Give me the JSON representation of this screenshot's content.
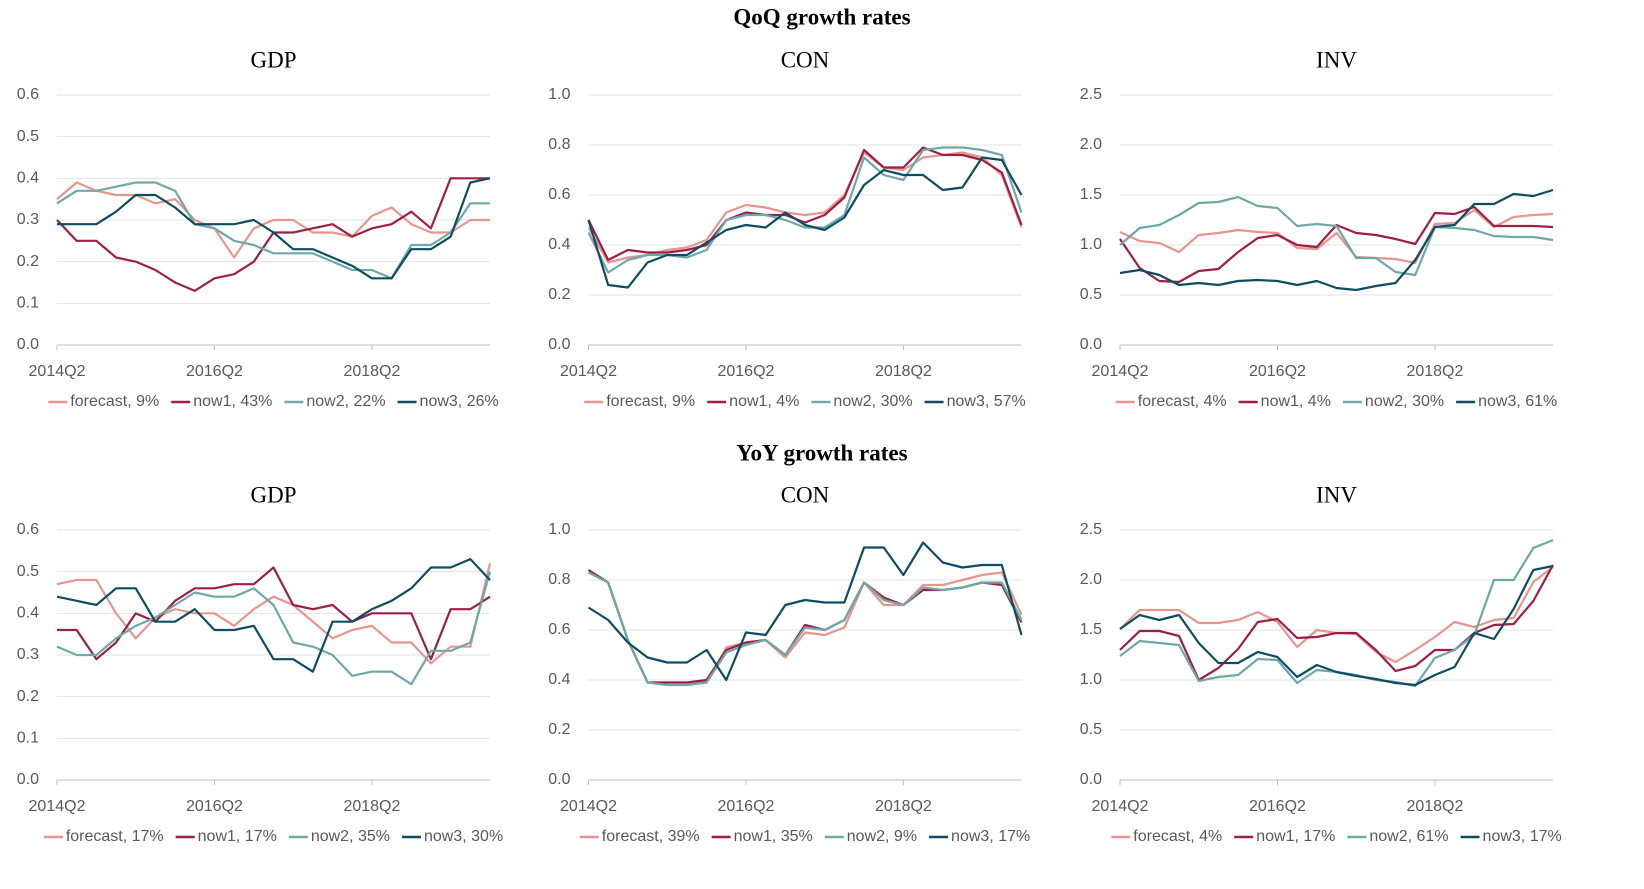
{
  "section_titles": [
    "QoQ growth rates",
    "YoY growth rates"
  ],
  "chart_data": [
    {
      "type": "line",
      "title": "GDP",
      "categories": [
        "2014Q2",
        null,
        null,
        null,
        null,
        null,
        null,
        null,
        "2016Q2",
        null,
        null,
        null,
        null,
        null,
        null,
        null,
        "2018Q2",
        null,
        null,
        null,
        null,
        null,
        null
      ],
      "ylim": [
        0,
        0.6
      ],
      "yticks": [
        {
          "value": 0,
          "label": "0.0"
        },
        0.1,
        0.2,
        0.3,
        0.4,
        0.5,
        0.6
      ],
      "grid": true,
      "series": [
        {
          "name": "forecast, 9%",
          "color": "#e8958d",
          "values": [
            0.35,
            0.39,
            0.37,
            0.36,
            0.36,
            0.34,
            0.35,
            0.3,
            0.28,
            0.21,
            0.28,
            0.3,
            0.3,
            0.27,
            0.27,
            0.26,
            0.31,
            0.33,
            0.29,
            0.27,
            0.27,
            0.3,
            0.3
          ]
        },
        {
          "name": "now1, 43%",
          "color": "#9e1f45",
          "values": [
            0.3,
            0.25,
            0.25,
            0.21,
            0.2,
            0.18,
            0.15,
            0.13,
            0.16,
            0.17,
            0.2,
            0.27,
            0.27,
            0.28,
            0.29,
            0.26,
            0.28,
            0.29,
            0.32,
            0.28,
            0.4,
            0.4,
            0.4
          ]
        },
        {
          "name": "now2, 22%",
          "color": "#6ea8a8",
          "values": [
            0.34,
            0.37,
            0.37,
            0.38,
            0.39,
            0.39,
            0.37,
            0.29,
            0.28,
            0.25,
            0.24,
            0.22,
            0.22,
            0.22,
            0.2,
            0.18,
            0.18,
            0.16,
            0.24,
            0.24,
            0.27,
            0.34,
            0.34
          ]
        },
        {
          "name": "now3, 26%",
          "color": "#0d4d63",
          "values": [
            0.29,
            0.29,
            0.29,
            0.32,
            0.36,
            0.36,
            0.33,
            0.29,
            0.29,
            0.29,
            0.3,
            0.27,
            0.23,
            0.23,
            0.21,
            0.19,
            0.16,
            0.16,
            0.23,
            0.23,
            0.26,
            0.39,
            0.4
          ]
        }
      ]
    },
    {
      "type": "line",
      "title": "CON",
      "categories": [
        "2014Q2",
        null,
        null,
        null,
        null,
        null,
        null,
        null,
        "2016Q2",
        null,
        null,
        null,
        null,
        null,
        null,
        null,
        "2018Q2",
        null,
        null,
        null,
        null,
        null,
        null
      ],
      "ylim": [
        0,
        1
      ],
      "yticks": [
        {
          "value": 0,
          "label": "0.0"
        },
        0.2,
        0.4,
        0.6,
        0.8,
        {
          "value": 1,
          "label": "1.0"
        }
      ],
      "grid": true,
      "series": [
        {
          "name": "forecast, 9%",
          "color": "#e8958d",
          "values": [
            0.47,
            0.33,
            0.35,
            0.36,
            0.38,
            0.39,
            0.42,
            0.53,
            0.56,
            0.55,
            0.53,
            0.52,
            0.53,
            0.6,
            0.77,
            0.71,
            0.7,
            0.75,
            0.76,
            0.77,
            0.75,
            0.68,
            0.47
          ]
        },
        {
          "name": "now1, 4%",
          "color": "#9e1f45",
          "values": [
            0.5,
            0.34,
            0.38,
            0.37,
            0.37,
            0.38,
            0.4,
            0.5,
            0.53,
            0.52,
            0.52,
            0.49,
            0.52,
            0.59,
            0.78,
            0.71,
            0.71,
            0.79,
            0.76,
            0.76,
            0.74,
            0.69,
            0.48
          ]
        },
        {
          "name": "now2, 30%",
          "color": "#6ea8a8",
          "values": [
            0.45,
            0.29,
            0.34,
            0.36,
            0.36,
            0.35,
            0.38,
            0.5,
            0.52,
            0.52,
            0.5,
            0.47,
            0.47,
            0.52,
            0.75,
            0.68,
            0.66,
            0.78,
            0.79,
            0.79,
            0.78,
            0.76,
            0.53
          ]
        },
        {
          "name": "now3, 57%",
          "color": "#0d4d63",
          "values": [
            0.5,
            0.24,
            0.23,
            0.33,
            0.36,
            0.36,
            0.41,
            0.46,
            0.48,
            0.47,
            0.53,
            0.48,
            0.46,
            0.51,
            0.64,
            0.7,
            0.68,
            0.68,
            0.62,
            0.63,
            0.75,
            0.74,
            0.6
          ]
        }
      ]
    },
    {
      "type": "line",
      "title": "INV",
      "categories": [
        "2014Q2",
        null,
        null,
        null,
        null,
        null,
        null,
        null,
        "2016Q2",
        null,
        null,
        null,
        null,
        null,
        null,
        null,
        "2018Q2",
        null,
        null,
        null,
        null,
        null,
        null
      ],
      "ylim": [
        0,
        2.5
      ],
      "yticks": [
        {
          "value": 0,
          "label": "0.0"
        },
        0.5,
        {
          "value": 1,
          "label": "1.0"
        },
        1.5,
        {
          "value": 2,
          "label": "2.0"
        },
        2.5
      ],
      "grid": true,
      "series": [
        {
          "name": "forecast, 4%",
          "color": "#e8958d",
          "values": [
            1.13,
            1.04,
            1.02,
            0.93,
            1.1,
            1.12,
            1.15,
            1.13,
            1.12,
            0.97,
            0.96,
            1.12,
            0.88,
            0.87,
            0.86,
            0.82,
            1.21,
            1.22,
            1.35,
            1.18,
            1.28,
            1.3,
            1.31
          ]
        },
        {
          "name": "now1, 4%",
          "color": "#9e1f45",
          "values": [
            1.06,
            0.77,
            0.64,
            0.63,
            0.74,
            0.76,
            0.93,
            1.07,
            1.1,
            1.0,
            0.98,
            1.2,
            1.12,
            1.1,
            1.06,
            1.01,
            1.32,
            1.31,
            1.38,
            1.19,
            1.19,
            1.19,
            1.18
          ]
        },
        {
          "name": "now2, 30%",
          "color": "#6ea8a8",
          "values": [
            1.0,
            1.17,
            1.2,
            1.3,
            1.42,
            1.43,
            1.48,
            1.39,
            1.37,
            1.19,
            1.21,
            1.19,
            0.87,
            0.87,
            0.73,
            0.7,
            1.18,
            1.17,
            1.15,
            1.09,
            1.08,
            1.08,
            1.05
          ]
        },
        {
          "name": "now3, 61%",
          "color": "#0d4d63",
          "values": [
            0.72,
            0.75,
            0.7,
            0.6,
            0.62,
            0.6,
            0.64,
            0.65,
            0.64,
            0.6,
            0.64,
            0.57,
            0.55,
            0.59,
            0.62,
            0.85,
            1.18,
            1.2,
            1.41,
            1.41,
            1.51,
            1.49,
            1.55
          ]
        }
      ]
    },
    {
      "type": "line",
      "title": "GDP",
      "categories": [
        "2014Q2",
        null,
        null,
        null,
        null,
        null,
        null,
        null,
        "2016Q2",
        null,
        null,
        null,
        null,
        null,
        null,
        null,
        "2018Q2",
        null,
        null,
        null,
        null,
        null,
        null
      ],
      "ylim": [
        0,
        0.6
      ],
      "yticks": [
        {
          "value": 0,
          "label": "0.0"
        },
        0.1,
        0.2,
        0.3,
        0.4,
        0.5,
        0.6
      ],
      "grid": true,
      "series": [
        {
          "name": "forecast, 17%",
          "color": "#e8958d",
          "values": [
            0.47,
            0.48,
            0.48,
            0.4,
            0.34,
            0.39,
            0.41,
            0.4,
            0.4,
            0.37,
            0.41,
            0.44,
            0.42,
            0.38,
            0.34,
            0.36,
            0.37,
            0.33,
            0.33,
            0.28,
            0.32,
            0.32,
            0.52
          ]
        },
        {
          "name": "now1, 17%",
          "color": "#9e1f45",
          "values": [
            0.36,
            0.36,
            0.29,
            0.33,
            0.4,
            0.38,
            0.43,
            0.46,
            0.46,
            0.47,
            0.47,
            0.51,
            0.42,
            0.41,
            0.42,
            0.38,
            0.4,
            0.4,
            0.4,
            0.29,
            0.41,
            0.41,
            0.44
          ]
        },
        {
          "name": "now2, 35%",
          "color": "#6ea8a8",
          "values": [
            0.32,
            0.3,
            0.3,
            0.34,
            0.37,
            0.39,
            0.42,
            0.45,
            0.44,
            0.44,
            0.46,
            0.42,
            0.33,
            0.32,
            0.3,
            0.25,
            0.26,
            0.26,
            0.23,
            0.31,
            0.31,
            0.33,
            0.5
          ]
        },
        {
          "name": "now3, 30%",
          "color": "#0d4d63",
          "values": [
            0.44,
            0.43,
            0.42,
            0.46,
            0.46,
            0.38,
            0.38,
            0.41,
            0.36,
            0.36,
            0.37,
            0.29,
            0.29,
            0.26,
            0.38,
            0.38,
            0.41,
            0.43,
            0.46,
            0.51,
            0.51,
            0.53,
            0.48
          ]
        }
      ]
    },
    {
      "type": "line",
      "title": "CON",
      "categories": [
        "2014Q2",
        null,
        null,
        null,
        null,
        null,
        null,
        null,
        "2016Q2",
        null,
        null,
        null,
        null,
        null,
        null,
        null,
        "2018Q2",
        null,
        null,
        null,
        null,
        null,
        null
      ],
      "ylim": [
        0,
        1
      ],
      "yticks": [
        {
          "value": 0,
          "label": "0.0"
        },
        0.2,
        0.4,
        0.6,
        0.8,
        {
          "value": 1,
          "label": "1.0"
        }
      ],
      "grid": true,
      "series": [
        {
          "name": "forecast, 39%",
          "color": "#e8958d",
          "values": [
            0.84,
            0.79,
            0.56,
            0.39,
            0.39,
            0.39,
            0.39,
            0.53,
            0.55,
            0.56,
            0.49,
            0.59,
            0.58,
            0.61,
            0.79,
            0.7,
            0.7,
            0.78,
            0.78,
            0.8,
            0.82,
            0.83,
            0.66
          ]
        },
        {
          "name": "now1, 35%",
          "color": "#9e1f45",
          "values": [
            0.84,
            0.79,
            0.56,
            0.39,
            0.39,
            0.39,
            0.4,
            0.52,
            0.55,
            0.56,
            0.5,
            0.62,
            0.6,
            0.64,
            0.79,
            0.73,
            0.7,
            0.76,
            0.76,
            0.77,
            0.79,
            0.78,
            0.63
          ]
        },
        {
          "name": "now2, 9%",
          "color": "#6ea8a8",
          "values": [
            0.83,
            0.79,
            0.56,
            0.39,
            0.38,
            0.38,
            0.39,
            0.51,
            0.54,
            0.56,
            0.5,
            0.61,
            0.6,
            0.64,
            0.79,
            0.72,
            0.7,
            0.77,
            0.76,
            0.77,
            0.79,
            0.79,
            0.64
          ]
        },
        {
          "name": "now3, 17%",
          "color": "#0d4d63",
          "values": [
            0.69,
            0.64,
            0.55,
            0.49,
            0.47,
            0.47,
            0.52,
            0.4,
            0.59,
            0.58,
            0.7,
            0.72,
            0.71,
            0.71,
            0.93,
            0.93,
            0.82,
            0.95,
            0.87,
            0.85,
            0.86,
            0.86,
            0.58
          ]
        }
      ]
    },
    {
      "type": "line",
      "title": "INV",
      "categories": [
        "2014Q2",
        null,
        null,
        null,
        null,
        null,
        null,
        null,
        "2016Q2",
        null,
        null,
        null,
        null,
        null,
        null,
        null,
        "2018Q2",
        null,
        null,
        null,
        null,
        null,
        null
      ],
      "ylim": [
        0,
        2.5
      ],
      "yticks": [
        {
          "value": 0,
          "label": "0.0"
        },
        0.5,
        {
          "value": 1,
          "label": "1.0"
        },
        1.5,
        {
          "value": 2,
          "label": "2.0"
        },
        2.5
      ],
      "grid": true,
      "series": [
        {
          "name": "forecast, 4%",
          "color": "#e8958d",
          "values": [
            1.51,
            1.7,
            1.7,
            1.7,
            1.57,
            1.57,
            1.6,
            1.68,
            1.58,
            1.33,
            1.5,
            1.47,
            1.46,
            1.28,
            1.18,
            1.3,
            1.43,
            1.58,
            1.53,
            1.6,
            1.62,
            1.98,
            2.13
          ]
        },
        {
          "name": "now1, 17%",
          "color": "#9e1f45",
          "values": [
            1.3,
            1.49,
            1.49,
            1.44,
            1.0,
            1.12,
            1.31,
            1.58,
            1.61,
            1.42,
            1.43,
            1.47,
            1.47,
            1.3,
            1.09,
            1.14,
            1.3,
            1.3,
            1.47,
            1.55,
            1.56,
            1.79,
            2.15
          ]
        },
        {
          "name": "now2, 61%",
          "color": "#6ea8a8",
          "values": [
            1.24,
            1.39,
            1.37,
            1.35,
            0.99,
            1.03,
            1.05,
            1.21,
            1.2,
            0.97,
            1.1,
            1.08,
            1.05,
            1.0,
            0.98,
            0.94,
            1.22,
            1.3,
            1.45,
            2.0,
            2.0,
            2.32,
            2.4
          ]
        },
        {
          "name": "now3, 17%",
          "color": "#0d4d63",
          "values": [
            1.51,
            1.65,
            1.6,
            1.65,
            1.37,
            1.17,
            1.17,
            1.28,
            1.23,
            1.03,
            1.15,
            1.08,
            1.04,
            1.01,
            0.97,
            0.95,
            1.05,
            1.13,
            1.47,
            1.41,
            1.71,
            2.1,
            2.14
          ]
        }
      ]
    }
  ]
}
